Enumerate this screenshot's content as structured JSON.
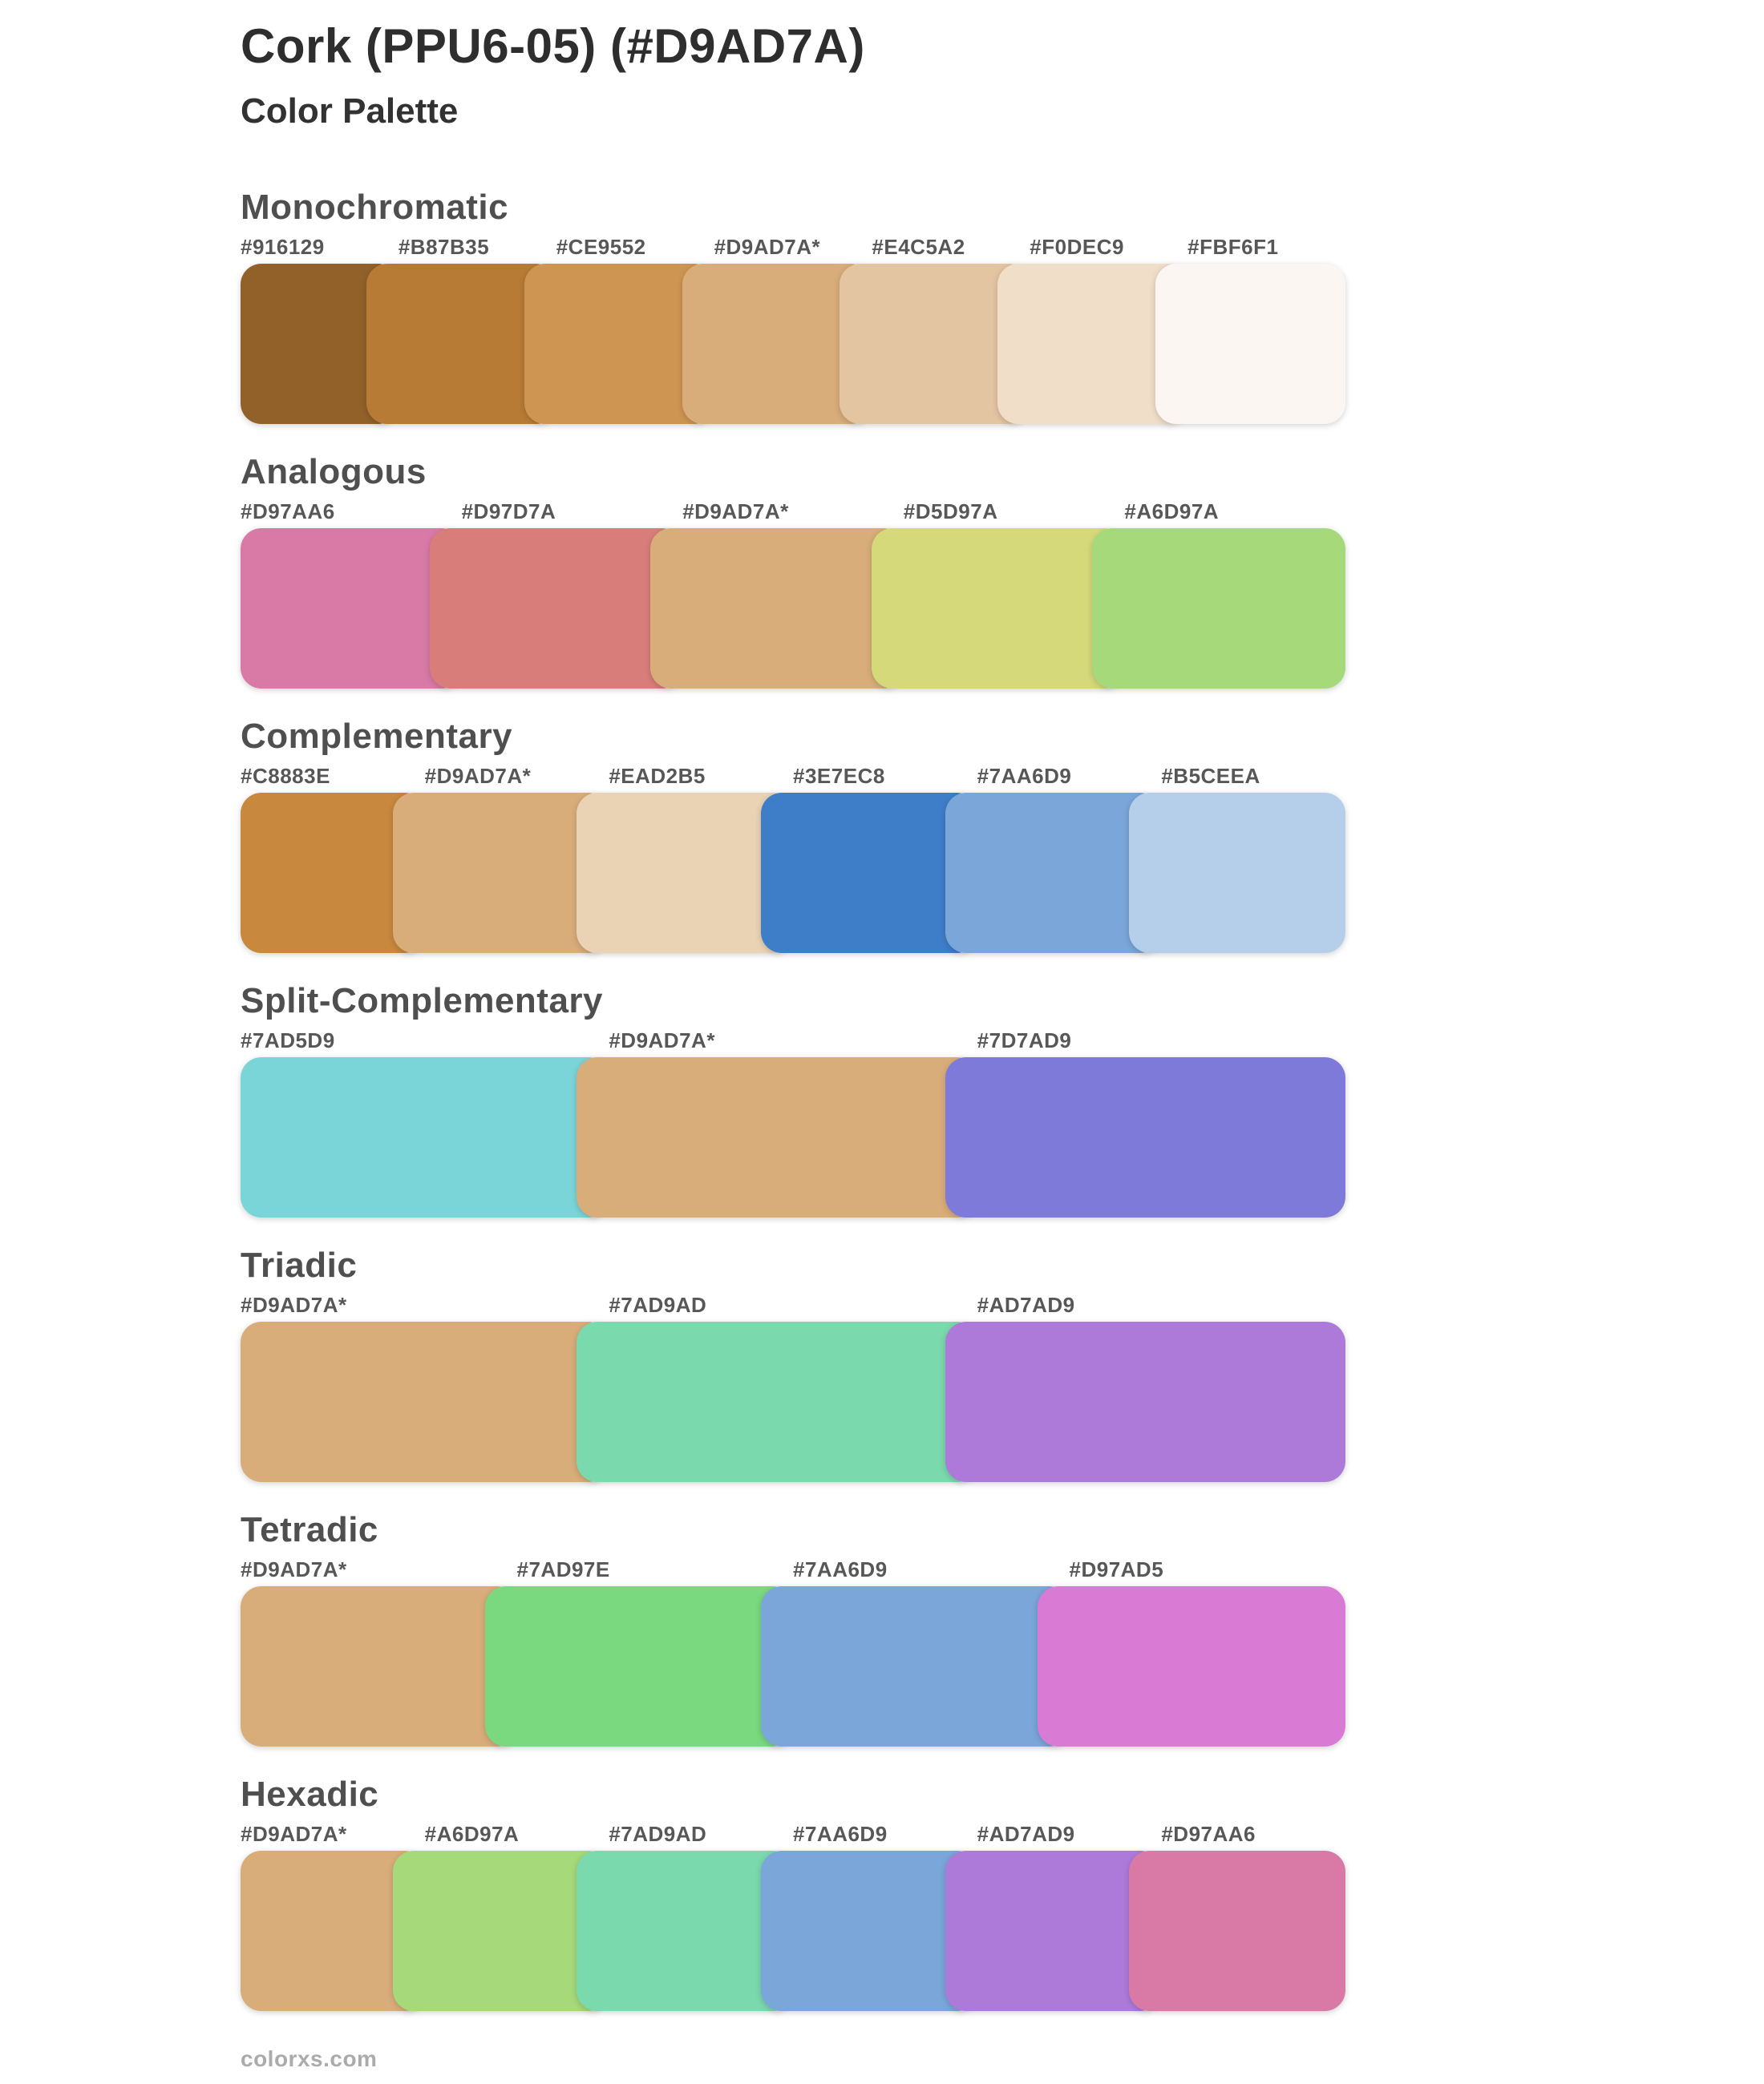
{
  "page": {
    "title": "Cork (PPU6-05) (#D9AD7A)",
    "subtitle": "Color Palette",
    "base_color": "#D9AD7A",
    "footer": "colorxs.com",
    "background": "#ffffff"
  },
  "sections": [
    {
      "name": "Monochromatic",
      "swatches": [
        {
          "label": "#916129",
          "hex": "#916129"
        },
        {
          "label": "#B87B35",
          "hex": "#B87B35"
        },
        {
          "label": "#CE9552",
          "hex": "#CE9552"
        },
        {
          "label": "#D9AD7A*",
          "hex": "#D9AD7A"
        },
        {
          "label": "#E4C5A2",
          "hex": "#E4C5A2"
        },
        {
          "label": "#F0DEC9",
          "hex": "#F0DEC9"
        },
        {
          "label": "#FBF6F1",
          "hex": "#FBF6F1"
        }
      ]
    },
    {
      "name": "Analogous",
      "swatches": [
        {
          "label": "#D97AA6",
          "hex": "#D97AA6"
        },
        {
          "label": "#D97D7A",
          "hex": "#D97D7A"
        },
        {
          "label": "#D9AD7A*",
          "hex": "#D9AD7A"
        },
        {
          "label": "#D5D97A",
          "hex": "#D5D97A"
        },
        {
          "label": "#A6D97A",
          "hex": "#A6D97A"
        }
      ]
    },
    {
      "name": "Complementary",
      "swatches": [
        {
          "label": "#C8883E",
          "hex": "#C8883E"
        },
        {
          "label": "#D9AD7A*",
          "hex": "#D9AD7A"
        },
        {
          "label": "#EAD2B5",
          "hex": "#EAD2B5"
        },
        {
          "label": "#3E7EC8",
          "hex": "#3E7EC8"
        },
        {
          "label": "#7AA6D9",
          "hex": "#7AA6D9"
        },
        {
          "label": "#B5CEEA",
          "hex": "#B5CEEA"
        }
      ]
    },
    {
      "name": "Split-Complementary",
      "swatches": [
        {
          "label": "#7AD5D9",
          "hex": "#7AD5D9"
        },
        {
          "label": "#D9AD7A*",
          "hex": "#D9AD7A"
        },
        {
          "label": "#7D7AD9",
          "hex": "#7D7AD9"
        }
      ]
    },
    {
      "name": "Triadic",
      "swatches": [
        {
          "label": "#D9AD7A*",
          "hex": "#D9AD7A"
        },
        {
          "label": "#7AD9AD",
          "hex": "#7AD9AD"
        },
        {
          "label": "#AD7AD9",
          "hex": "#AD7AD9"
        }
      ]
    },
    {
      "name": "Tetradic",
      "swatches": [
        {
          "label": "#D9AD7A*",
          "hex": "#D9AD7A"
        },
        {
          "label": "#7AD97E",
          "hex": "#7AD97E"
        },
        {
          "label": "#7AA6D9",
          "hex": "#7AA6D9"
        },
        {
          "label": "#D97AD5",
          "hex": "#D97AD5"
        }
      ]
    },
    {
      "name": "Hexadic",
      "swatches": [
        {
          "label": "#D9AD7A*",
          "hex": "#D9AD7A"
        },
        {
          "label": "#A6D97A",
          "hex": "#A6D97A"
        },
        {
          "label": "#7AD9AD",
          "hex": "#7AD9AD"
        },
        {
          "label": "#7AA6D9",
          "hex": "#7AA6D9"
        },
        {
          "label": "#AD7AD9",
          "hex": "#AD7AD9"
        },
        {
          "label": "#D97AA6",
          "hex": "#D97AA6"
        }
      ]
    }
  ]
}
